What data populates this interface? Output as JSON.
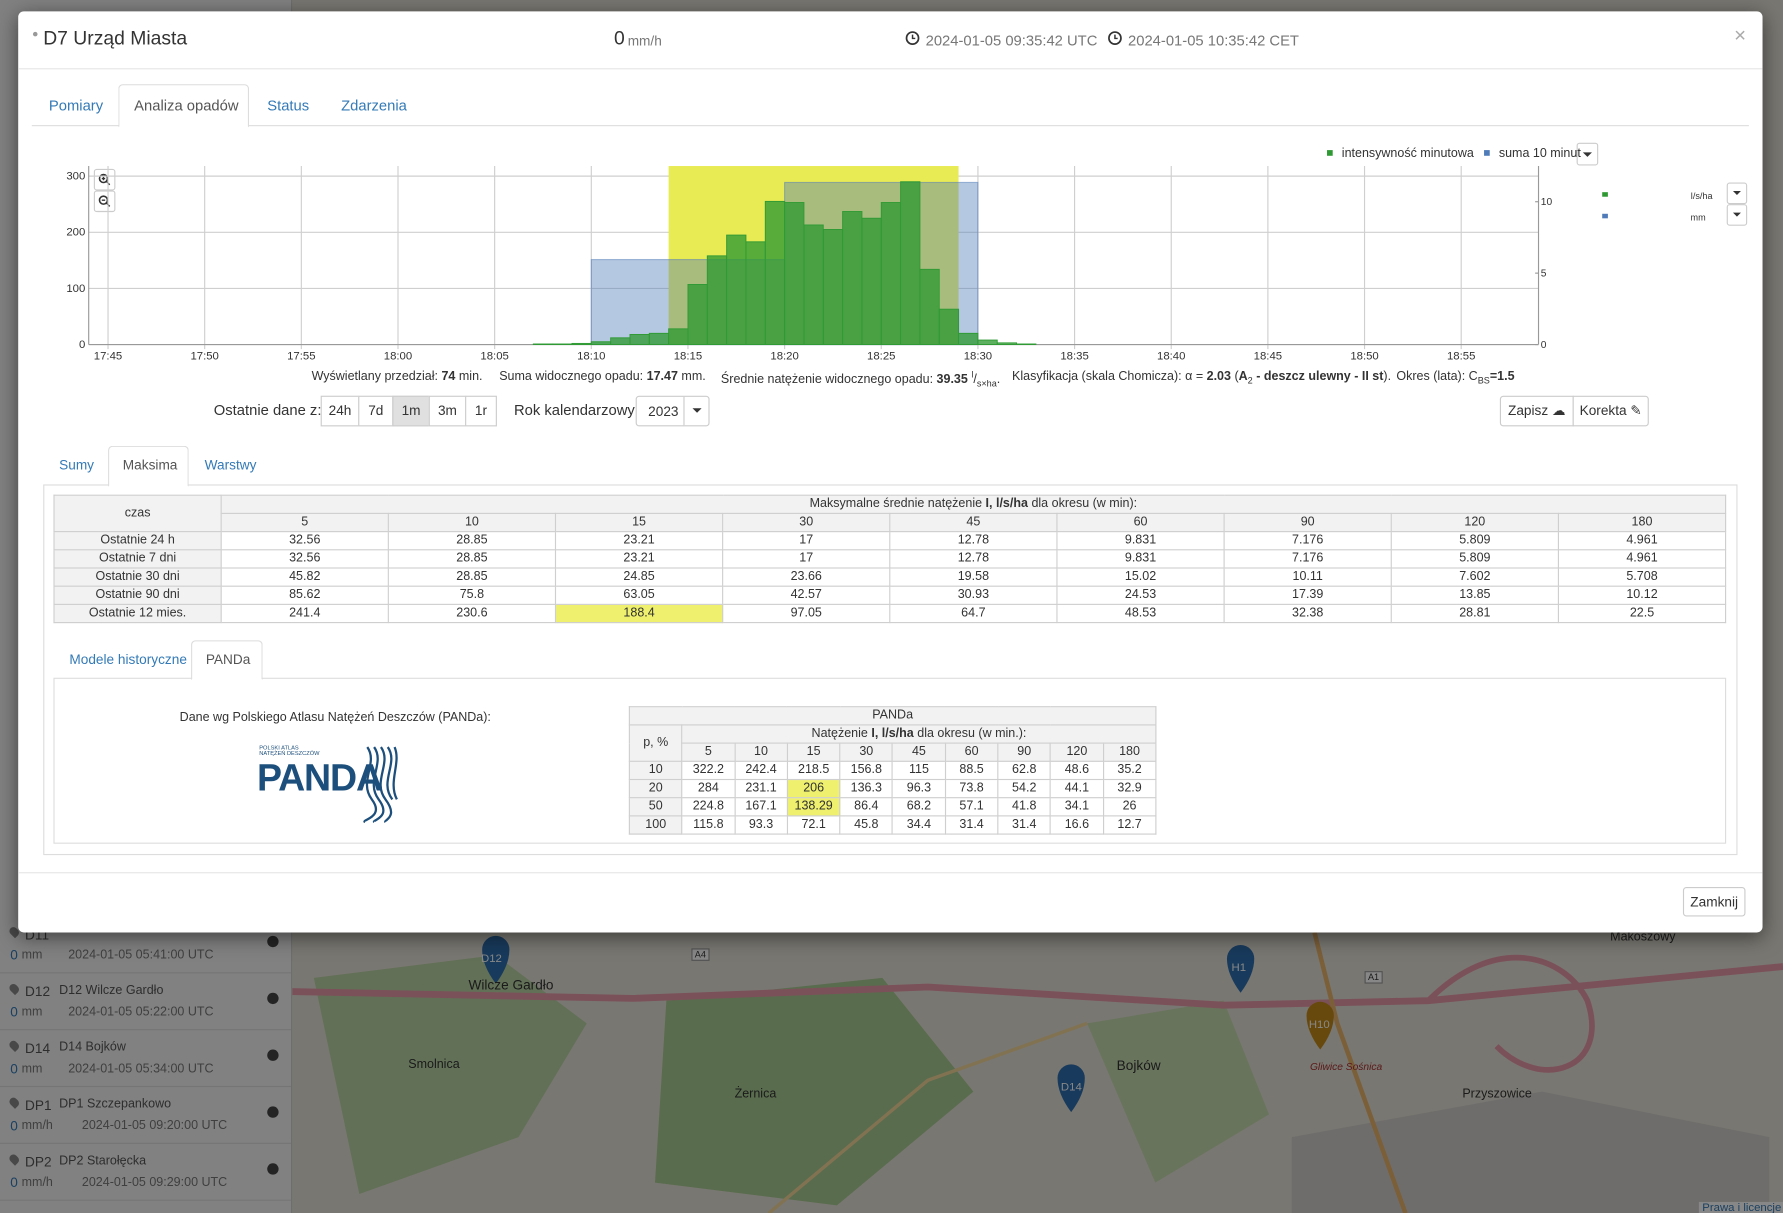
{
  "background": {
    "stations": [
      {
        "id": "D11",
        "value": "0",
        "unit": "mm",
        "time": "2024-01-05 05:41:00 UTC"
      },
      {
        "id": "D12",
        "name": "D12 Wilcze Gardło",
        "value": "0",
        "unit": "mm",
        "time": "2024-01-05 05:22:00 UTC"
      },
      {
        "id": "D14",
        "name": "D14 Bojków",
        "value": "0",
        "unit": "mm",
        "time": "2024-01-05 05:34:00 UTC"
      },
      {
        "id": "DP1",
        "name": "DP1 Szczepankowo",
        "value": "0",
        "unit": "mm/h",
        "time": "2024-01-05 09:20:00 UTC"
      },
      {
        "id": "DP2",
        "name": "DP2 Starołęcka",
        "value": "0",
        "unit": "mm/h",
        "time": "2024-01-05 09:29:00 UTC"
      }
    ],
    "map_labels": [
      "Wilcze Gardło",
      "Smolnica",
      "Żernica",
      "Bojków",
      "Przyszowice",
      "Makoszowy",
      "Gliwice Sośnica",
      "A4",
      "A1"
    ],
    "markers": [
      "D12",
      "H1",
      "H10",
      "D14"
    ],
    "license": "Prawa i licencje"
  },
  "modal": {
    "title": "D7 Urząd Miasta",
    "current_value": "0",
    "current_unit": "mm/h",
    "time_utc": "2024-01-05 09:35:42 UTC",
    "time_cet": "2024-01-05 10:35:42 CET",
    "close_icon": "×",
    "tabs": [
      "Pomiary",
      "Analiza opadów",
      "Status",
      "Zdarzenia"
    ]
  },
  "chart_data": {
    "type": "bar",
    "ylabel": "l/s/ha",
    "y2label": "mm",
    "xlim": [
      "17:44",
      "18:59"
    ],
    "xticks": [
      "17:45",
      "17:50",
      "17:55",
      "18:00",
      "18:05",
      "18:10",
      "18:15",
      "18:20",
      "18:25",
      "18:30",
      "18:35",
      "18:40",
      "18:45",
      "18:50",
      "18:55"
    ],
    "ylim": [
      0,
      318
    ],
    "yticks": [
      0,
      100,
      200,
      300
    ],
    "y2lim": [
      0,
      12.5
    ],
    "y2ticks": [
      0,
      5,
      10
    ],
    "grid": true,
    "highlight": {
      "from": "18:14",
      "to": "18:29",
      "color": "#e9eb55"
    },
    "series": [
      {
        "name": "intensywność minutowa",
        "color": "#2f9a33",
        "x": [
          "18:07",
          "18:08",
          "18:09",
          "18:10",
          "18:11",
          "18:12",
          "18:13",
          "18:14",
          "18:15",
          "18:16",
          "18:17",
          "18:18",
          "18:19",
          "18:20",
          "18:21",
          "18:22",
          "18:23",
          "18:24",
          "18:25",
          "18:26",
          "18:27",
          "18:28",
          "18:29",
          "18:30",
          "18:31",
          "18:32"
        ],
        "values": [
          1,
          1,
          2,
          5,
          12,
          18,
          20,
          28,
          107,
          158,
          195,
          183,
          255,
          253,
          213,
          205,
          237,
          225,
          253,
          290,
          134,
          63,
          20,
          8,
          3,
          1
        ]
      },
      {
        "name": "suma 10 minut",
        "color": "#4f7cb8",
        "axis": "y2",
        "bins": [
          "18:10",
          "18:20",
          "18:30"
        ],
        "values": [
          5.95,
          11.35
        ]
      }
    ]
  },
  "stats": {
    "range_label": "Wyświetlany przedział:",
    "range_value": "74",
    "range_unit": "min.",
    "sum_label": "Suma widocznego opadu:",
    "sum_value": "17.47",
    "sum_unit": "mm.",
    "mean_label": "Średnie natężenie widocznego opadu:",
    "mean_value": "39.35",
    "mean_unit_num": "l",
    "mean_unit_den": "s×ha",
    "mean_unit_end": ".",
    "class_label": "Klasyfikacja (skala Chomicza): α =",
    "class_value": "2.03",
    "class_open": "(",
    "class_cat": "A",
    "class_cat_sub": "2",
    "class_desc": "- deszcz ulewny - II st",
    "class_close": ").",
    "period_label": "Okres (lata): C",
    "period_sub": "BS",
    "period_value": "=1.5"
  },
  "controls": {
    "recent_label": "Ostatnie dane z:",
    "recent_buttons": [
      "24h",
      "7d",
      "1m",
      "3m",
      "1r"
    ],
    "year_label": "Rok kalendarzowy:",
    "year": "2023",
    "save": "Zapisz",
    "correct": "Korekta",
    "subtabs": [
      "Sumy",
      "Maksima",
      "Warstwy"
    ]
  },
  "maxima": {
    "time_header": "czas",
    "group_pre": "Maksymalne średnie natężenie",
    "group_bold": "I, l/s/ha",
    "group_post": "dla okresu (w min):",
    "durations": [
      5,
      10,
      15,
      30,
      45,
      60,
      90,
      120,
      180
    ],
    "rows": [
      {
        "label": "Ostatnie 24 h",
        "values": [
          32.56,
          28.85,
          23.21,
          17,
          12.78,
          9.831,
          7.176,
          5.809,
          4.961
        ]
      },
      {
        "label": "Ostatnie 7 dni",
        "values": [
          32.56,
          28.85,
          23.21,
          17,
          12.78,
          9.831,
          7.176,
          5.809,
          4.961
        ]
      },
      {
        "label": "Ostatnie 30 dni",
        "values": [
          45.82,
          28.85,
          24.85,
          23.66,
          19.58,
          15.02,
          10.11,
          7.602,
          5.708
        ]
      },
      {
        "label": "Ostatnie 90 dni",
        "values": [
          85.62,
          75.8,
          63.05,
          42.57,
          30.93,
          24.53,
          17.39,
          13.85,
          10.12
        ]
      },
      {
        "label": "Ostatnie 12 mies.",
        "values": [
          241.4,
          230.6,
          188.4,
          97.05,
          64.7,
          48.53,
          32.38,
          28.81,
          22.5
        ]
      }
    ],
    "highlight": [
      {
        "row": 4,
        "col": 2
      }
    ],
    "highlight_color": "#eef06e"
  },
  "panda": {
    "tabs": [
      "Modele historyczne",
      "PANDa"
    ],
    "intro": "Dane wg Polskiego Atlasu Natężeń Deszczów (PANDa):",
    "logo_small": [
      "POLSKI ATLAS",
      "NATĘŻEŃ DESZCZÓW"
    ],
    "logo_big": "PANDA",
    "table": {
      "title": "PANDa",
      "p_header": "p, %",
      "group_pre": "Natężenie",
      "group_bold": "I, l/s/ha",
      "group_post": "dla okresu (w min.):",
      "durations": [
        5,
        10,
        15,
        30,
        45,
        60,
        90,
        120,
        180
      ],
      "rows": [
        {
          "p": 10,
          "values": [
            322.2,
            242.4,
            218.5,
            156.8,
            115,
            88.5,
            62.8,
            48.6,
            35.2
          ]
        },
        {
          "p": 20,
          "values": [
            284,
            231.1,
            206,
            136.3,
            96.3,
            73.8,
            54.2,
            44.1,
            32.9
          ]
        },
        {
          "p": 50,
          "values": [
            224.8,
            167.1,
            138.29,
            86.4,
            68.2,
            57.1,
            41.8,
            34.1,
            26
          ]
        },
        {
          "p": 100,
          "values": [
            115.8,
            93.3,
            72.1,
            45.8,
            34.4,
            31.4,
            31.4,
            16.6,
            12.7
          ]
        }
      ],
      "highlight": [
        {
          "row": 1,
          "col": 2
        },
        {
          "row": 2,
          "col": 2
        }
      ],
      "highlight_color": "#eef06e"
    }
  },
  "footer": {
    "close": "Zamknij"
  }
}
